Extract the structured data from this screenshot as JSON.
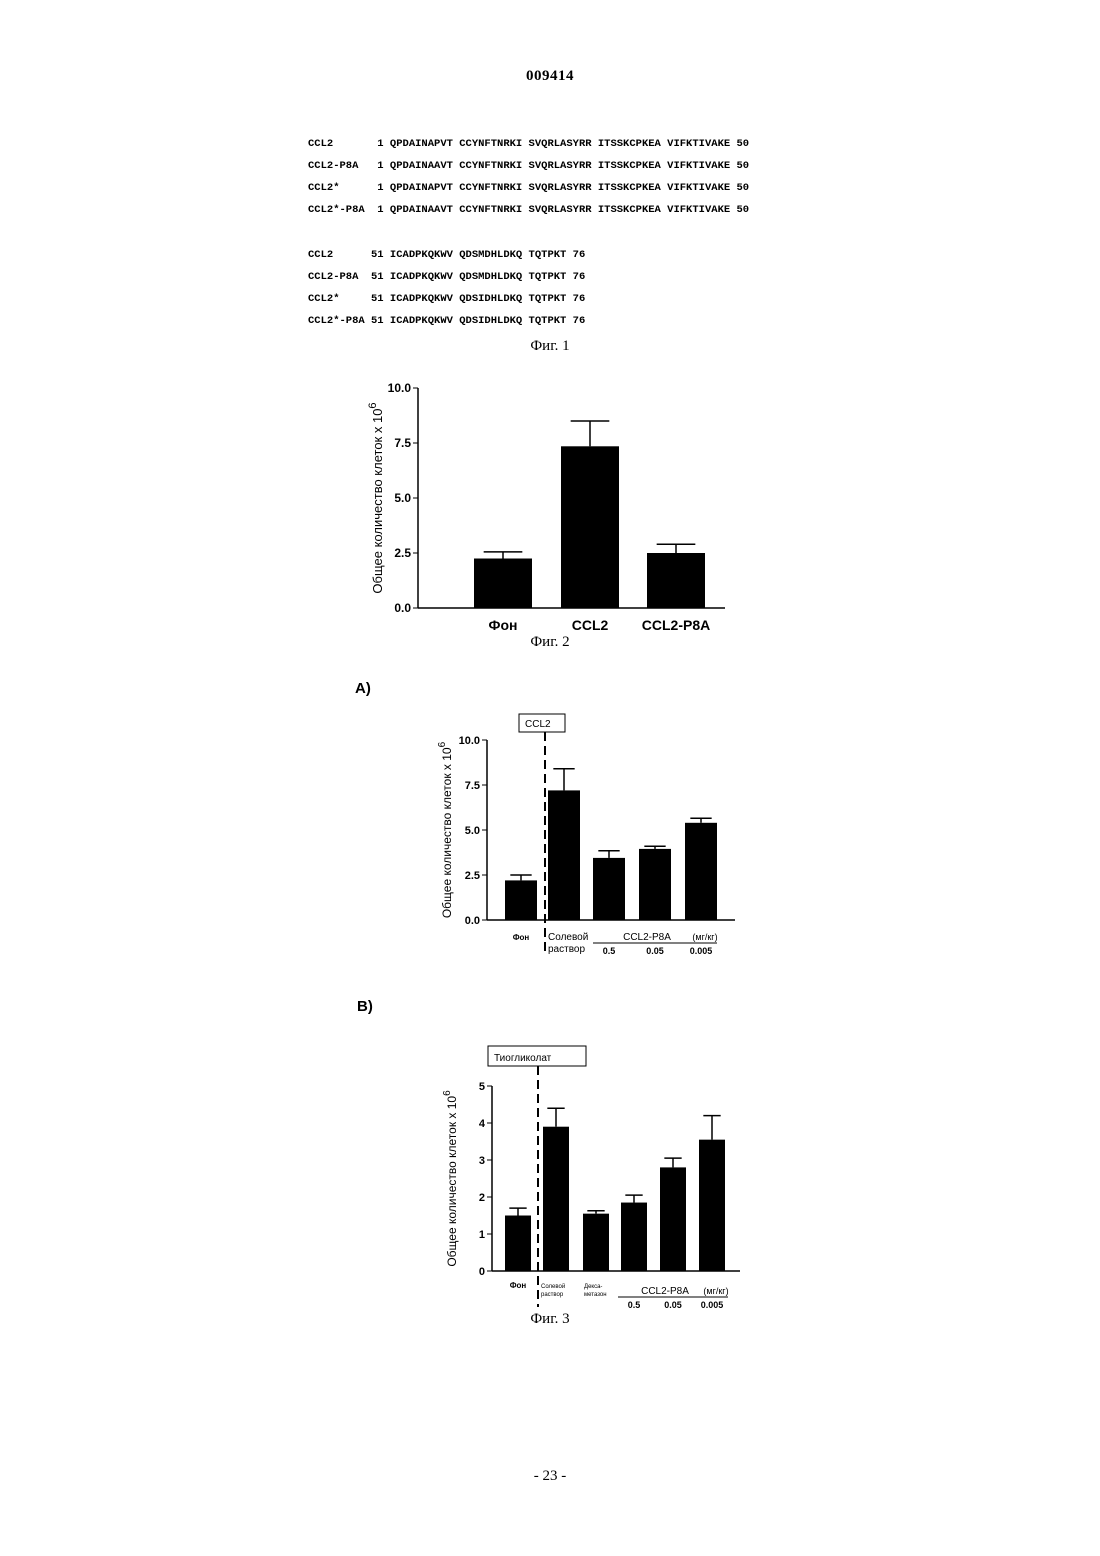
{
  "header": {
    "doc_number": "009414"
  },
  "fig1": {
    "rows": [
      "CCL2       1 QPDAINAPVT CCYNFTNRKI SVQRLASYRR ITSSKCPKEA VIFKTIVAKE 50",
      "CCL2-P8A   1 QPDAINAAVT CCYNFTNRKI SVQRLASYRR ITSSKCPKEA VIFKTIVAKE 50",
      "CCL2*      1 QPDAINAPVT CCYNFTNRKI SVQRLASYRR ITSSKCPKEA VIFKTIVAKE 50",
      "CCL2*-P8A  1 QPDAINAAVT CCYNFTNRKI SVQRLASYRR ITSSKCPKEA VIFKTIVAKE 50",
      "CCL2      51 ICADPKQKWV QDSMDHLDKQ TQTPKT 76",
      "CCL2-P8A  51 ICADPKQKWV QDSMDHLDKQ TQTPKT 76",
      "CCL2*     51 ICADPKQKWV QDSIDHLDKQ TQTPKT 76",
      "CCL2*-P8A 51 ICADPKQKWV QDSIDHLDKQ TQTPKT 76"
    ],
    "caption": "Фиг. 1"
  },
  "fig2": {
    "caption": "Фиг. 2"
  },
  "fig3": {
    "label_a": "A)",
    "label_b": "B)",
    "caption": "Фиг. 3"
  },
  "footer": {
    "page": "- 23 -"
  },
  "chart_data": [
    {
      "type": "bar",
      "ylabel": "Общее количество клеток x 10",
      "ylabel_exp": "6",
      "ylim": [
        0,
        10
      ],
      "yticks": [
        "0.0",
        "2.5",
        "5.0",
        "7.5",
        "10.0"
      ],
      "categories": [
        "Фон",
        "CCL2",
        "CCL2-P8A"
      ],
      "values": [
        2.25,
        7.35,
        2.5
      ],
      "errors": [
        0.3,
        1.15,
        0.4
      ]
    },
    {
      "type": "bar",
      "ylabel": "Общее количество клеток x 10",
      "ylabel_exp": "6",
      "ylim": [
        0,
        10
      ],
      "yticks": [
        "0.0",
        "2.5",
        "5.0",
        "7.5",
        "10.0"
      ],
      "box_label": "CCL2",
      "categories": [
        "Фон",
        "Солевой раствор",
        "0.5",
        "0.05",
        "0.005"
      ],
      "group_label": "CCL2-P8A",
      "units": "(мг/кг)",
      "values": [
        2.2,
        7.2,
        3.45,
        3.95,
        5.4
      ],
      "errors": [
        0.3,
        1.2,
        0.4,
        0.15,
        0.25
      ]
    },
    {
      "type": "bar",
      "ylabel": "Общее количество клеток x 10",
      "ylabel_exp": "6",
      "ylim": [
        0,
        5
      ],
      "yticks": [
        "0",
        "1",
        "2",
        "3",
        "4",
        "5"
      ],
      "box_label": "Тиогликолат",
      "categories": [
        "Фон",
        "Солевой раствор",
        "Декса-метазон",
        "0.5",
        "0.05",
        "0.005"
      ],
      "group_label": "CCL2-P8A",
      "units": "(мг/кг)",
      "values": [
        1.5,
        3.9,
        1.55,
        1.85,
        2.8,
        3.55
      ],
      "errors": [
        0.2,
        0.5,
        0.08,
        0.2,
        0.25,
        0.65
      ]
    }
  ]
}
